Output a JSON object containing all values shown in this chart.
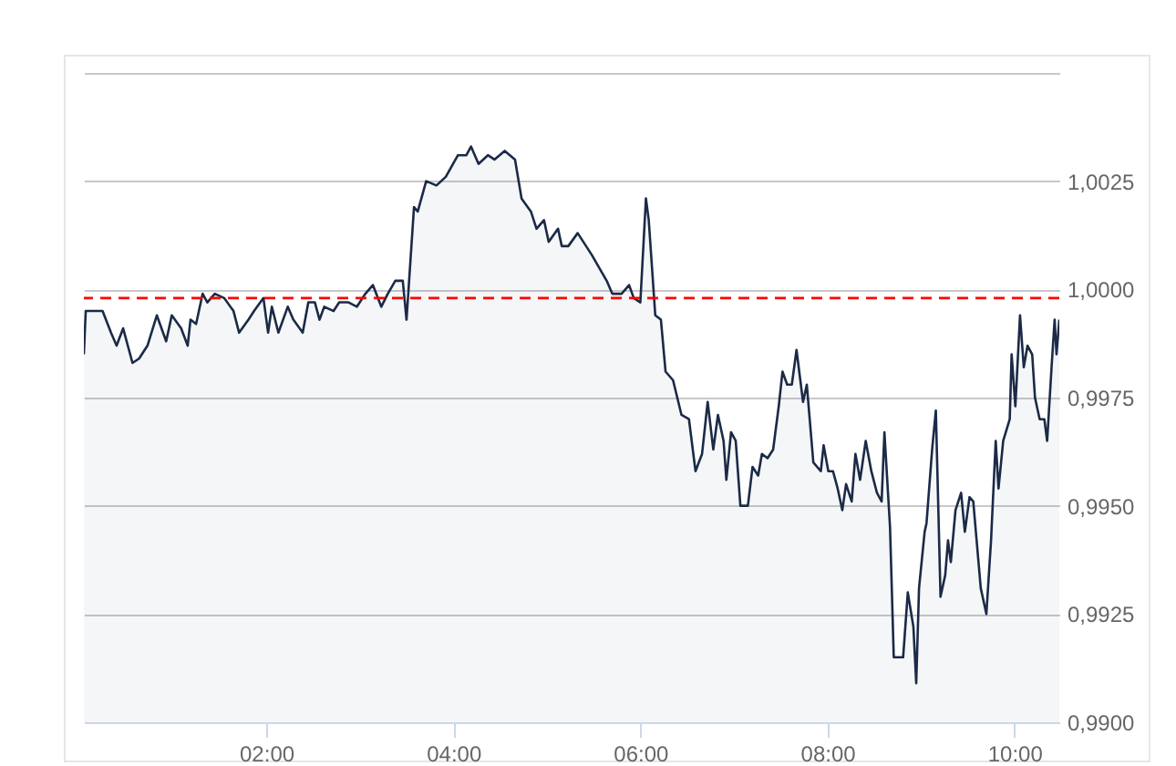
{
  "chart_data": {
    "type": "area",
    "x": [
      0.05,
      0.07,
      0.25,
      0.34,
      0.4,
      0.47,
      0.57,
      0.64,
      0.73,
      0.83,
      0.93,
      0.99,
      1.09,
      1.16,
      1.19,
      1.25,
      1.32,
      1.37,
      1.45,
      1.55,
      1.65,
      1.71,
      1.81,
      1.87,
      1.97,
      2.02,
      2.06,
      2.13,
      2.23,
      2.29,
      2.39,
      2.45,
      2.52,
      2.57,
      2.62,
      2.72,
      2.78,
      2.88,
      2.97,
      3.06,
      3.14,
      3.23,
      3.3,
      3.38,
      3.46,
      3.5,
      3.58,
      3.62,
      3.71,
      3.82,
      3.92,
      4.05,
      4.14,
      4.19,
      4.27,
      4.37,
      4.44,
      4.55,
      4.66,
      4.73,
      4.83,
      4.89,
      4.97,
      5.02,
      5.12,
      5.16,
      5.23,
      5.33,
      5.48,
      5.64,
      5.7,
      5.8,
      5.88,
      5.93,
      6.0,
      6.06,
      6.09,
      6.16,
      6.22,
      6.27,
      6.35,
      6.44,
      6.52,
      6.59,
      6.66,
      6.72,
      6.78,
      6.83,
      6.89,
      6.92,
      6.97,
      7.02,
      7.07,
      7.15,
      7.2,
      7.26,
      7.3,
      7.36,
      7.42,
      7.48,
      7.52,
      7.57,
      7.62,
      7.67,
      7.74,
      7.78,
      7.85,
      7.93,
      7.96,
      8.01,
      8.06,
      8.11,
      8.16,
      8.2,
      8.26,
      8.3,
      8.35,
      8.41,
      8.47,
      8.53,
      8.58,
      8.61,
      8.67,
      8.71,
      8.81,
      8.86,
      8.92,
      8.95,
      8.98,
      9.04,
      9.06,
      9.12,
      9.16,
      9.21,
      9.26,
      9.29,
      9.32,
      9.37,
      9.43,
      9.47,
      9.52,
      9.56,
      9.6,
      9.64,
      9.7,
      9.75,
      9.8,
      9.83,
      9.88,
      9.95,
      9.97,
      10.01,
      10.06,
      10.1,
      10.14,
      10.19,
      10.22,
      10.27,
      10.32,
      10.35,
      10.4,
      10.43,
      10.45,
      10.48
    ],
    "series": [
      {
        "color": "#1b2a47",
        "values": [
          0.9985,
          0.9995,
          0.9995,
          0.999,
          0.9987,
          0.9991,
          0.9983,
          0.9984,
          0.9987,
          0.9994,
          0.9988,
          0.9994,
          0.9991,
          0.9987,
          0.9993,
          0.9992,
          0.9999,
          0.9997,
          0.9999,
          0.9998,
          0.9995,
          0.999,
          0.9993,
          0.9995,
          0.9998,
          0.999,
          0.9996,
          0.999,
          0.9996,
          0.9993,
          0.999,
          0.9997,
          0.9997,
          0.9993,
          0.9996,
          0.9995,
          0.9997,
          0.9997,
          0.9996,
          0.9999,
          1.0001,
          0.9996,
          0.9999,
          1.0002,
          1.0002,
          0.9993,
          1.0019,
          1.0018,
          1.0025,
          1.0024,
          1.0026,
          1.0031,
          1.0031,
          1.0033,
          1.0029,
          1.0031,
          1.003,
          1.0032,
          1.003,
          1.0021,
          1.0018,
          1.0014,
          1.0016,
          1.0011,
          1.0014,
          1.001,
          1.001,
          1.0013,
          1.0008,
          1.0002,
          0.9999,
          0.9999,
          1.0001,
          0.9998,
          0.9997,
          1.0021,
          1.0016,
          0.9994,
          0.9993,
          0.9981,
          0.9979,
          0.9971,
          0.997,
          0.9958,
          0.9962,
          0.9974,
          0.9963,
          0.9971,
          0.9965,
          0.9956,
          0.9967,
          0.9965,
          0.995,
          0.995,
          0.9959,
          0.9957,
          0.9962,
          0.9961,
          0.9963,
          0.9973,
          0.9981,
          0.9978,
          0.9978,
          0.9986,
          0.9974,
          0.9978,
          0.996,
          0.9958,
          0.9964,
          0.9958,
          0.9958,
          0.9954,
          0.9949,
          0.9955,
          0.9951,
          0.9962,
          0.9956,
          0.9965,
          0.9958,
          0.9953,
          0.9951,
          0.9967,
          0.9945,
          0.9915,
          0.9915,
          0.993,
          0.9922,
          0.9909,
          0.9931,
          0.9944,
          0.9946,
          0.9963,
          0.9972,
          0.9929,
          0.9934,
          0.9942,
          0.9937,
          0.9949,
          0.9953,
          0.9944,
          0.9952,
          0.9951,
          0.9941,
          0.9931,
          0.9925,
          0.9942,
          0.9965,
          0.9954,
          0.9965,
          0.997,
          0.9985,
          0.9973,
          0.9994,
          0.9982,
          0.9987,
          0.9985,
          0.9975,
          0.997,
          0.997,
          0.9965,
          0.9983,
          0.9993,
          0.9985,
          0.9993
        ]
      }
    ],
    "xlim": [
      0.05,
      10.48
    ],
    "xticks": [
      {
        "value": 2,
        "label": "02:00"
      },
      {
        "value": 4,
        "label": "04:00"
      },
      {
        "value": 6,
        "label": "06:00"
      },
      {
        "value": 8,
        "label": "08:00"
      },
      {
        "value": 10,
        "label": "10:00"
      }
    ],
    "ylim": [
      0.99,
      1.005
    ],
    "yticks": [
      {
        "value": 0.99,
        "label": "0,9900"
      },
      {
        "value": 0.9925,
        "label": "0,9925"
      },
      {
        "value": 0.995,
        "label": "0,9950"
      },
      {
        "value": 0.9975,
        "label": "0,9975"
      },
      {
        "value": 1.0,
        "label": "1,0000"
      },
      {
        "value": 1.0025,
        "label": "1,0025"
      },
      {
        "value": 1.005,
        "label": null
      }
    ],
    "grid": "y",
    "ref_lines": [
      {
        "axis": "y",
        "value": 0.9998,
        "color": "#ff0000",
        "line_style": "dashed"
      }
    ]
  }
}
